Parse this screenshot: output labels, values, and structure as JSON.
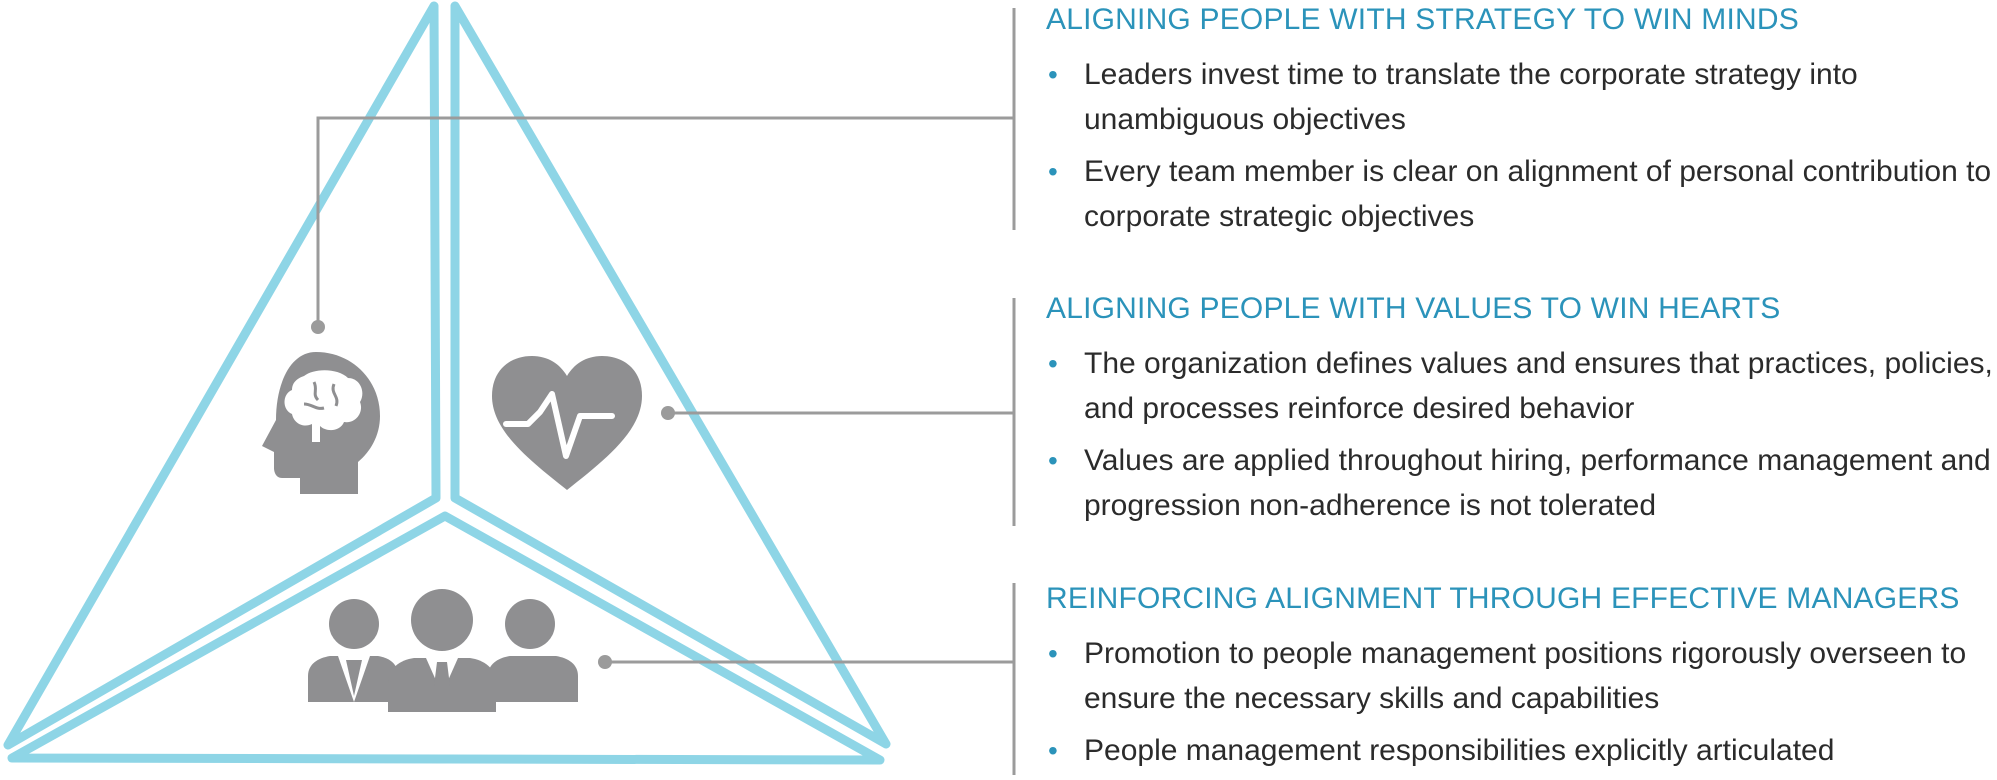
{
  "colors": {
    "accent": "#2b93ba",
    "triangle_stroke": "#8ed5e6",
    "icon_fill": "#8f8f91",
    "connector": "#9b9b9b",
    "text": "#2b2b2b"
  },
  "diagram": {
    "icons": [
      "brain-head-icon",
      "heartbeat-heart-icon",
      "team-people-icon"
    ]
  },
  "sections": [
    {
      "title": "ALIGNING PEOPLE WITH STRATEGY TO WIN MINDS",
      "bullets": [
        "Leaders invest time to translate the corporate strategy into unambiguous objectives",
        "Every team member is clear on alignment of personal contribution to corporate strategic objectives"
      ]
    },
    {
      "title": "ALIGNING PEOPLE WITH VALUES TO WIN HEARTS",
      "bullets": [
        "The organization defines values and ensures that practices, policies, and processes reinforce desired behavior",
        "Values are applied throughout hiring, performance management and progression non-adherence is not tolerated"
      ]
    },
    {
      "title": "REINFORCING ALIGNMENT THROUGH EFFECTIVE MANAGERS",
      "bullets": [
        "Promotion to people management positions rigorously overseen to ensure the necessary skills and capabilities",
        "People management responsibilities explicitly articulated"
      ]
    }
  ],
  "bullet_glyph": "•"
}
